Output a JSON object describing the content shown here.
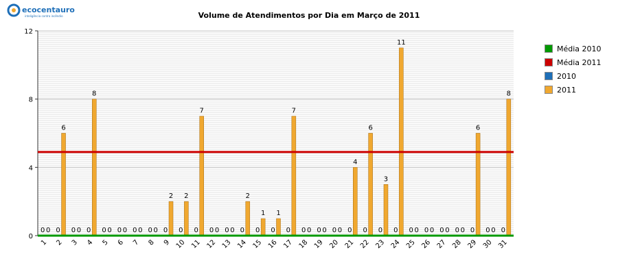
{
  "logo": {
    "text": "ecocentauro",
    "tagline": "inteligência contra incêndio"
  },
  "colors": {
    "media2010": "#009900",
    "media2011": "#cc0000",
    "s2010": "#1e6fb8",
    "s2011": "#f0a830"
  },
  "chart_data": {
    "type": "bar",
    "title": "Volume de Atendimentos por Dia em Março de 2011",
    "xlabel": "",
    "ylabel": "",
    "ylim": [
      0,
      12
    ],
    "yticks": [
      0,
      4,
      8,
      12
    ],
    "grid": true,
    "legend_position": "right",
    "categories": [
      "1",
      "2",
      "3",
      "4",
      "5",
      "6",
      "7",
      "8",
      "9",
      "10",
      "11",
      "12",
      "13",
      "14",
      "15",
      "16",
      "17",
      "18",
      "19",
      "20",
      "21",
      "22",
      "23",
      "24",
      "25",
      "26",
      "27",
      "28",
      "29",
      "30",
      "31"
    ],
    "series": [
      {
        "name": "2010",
        "type": "bar",
        "values": [
          0,
          0,
          0,
          0,
          0,
          0,
          0,
          0,
          0,
          0,
          0,
          0,
          0,
          0,
          0,
          0,
          0,
          0,
          0,
          0,
          0,
          0,
          0,
          0,
          0,
          0,
          0,
          0,
          0,
          0,
          0
        ]
      },
      {
        "name": "2011",
        "type": "bar",
        "values": [
          0,
          6,
          0,
          8,
          0,
          0,
          0,
          0,
          2,
          2,
          7,
          0,
          0,
          2,
          1,
          1,
          7,
          0,
          0,
          0,
          4,
          6,
          3,
          11,
          0,
          0,
          0,
          0,
          6,
          0,
          8
        ]
      },
      {
        "name": "Média 2010",
        "type": "line",
        "value": 0
      },
      {
        "name": "Média 2011",
        "type": "line",
        "value": 4.9
      }
    ]
  }
}
